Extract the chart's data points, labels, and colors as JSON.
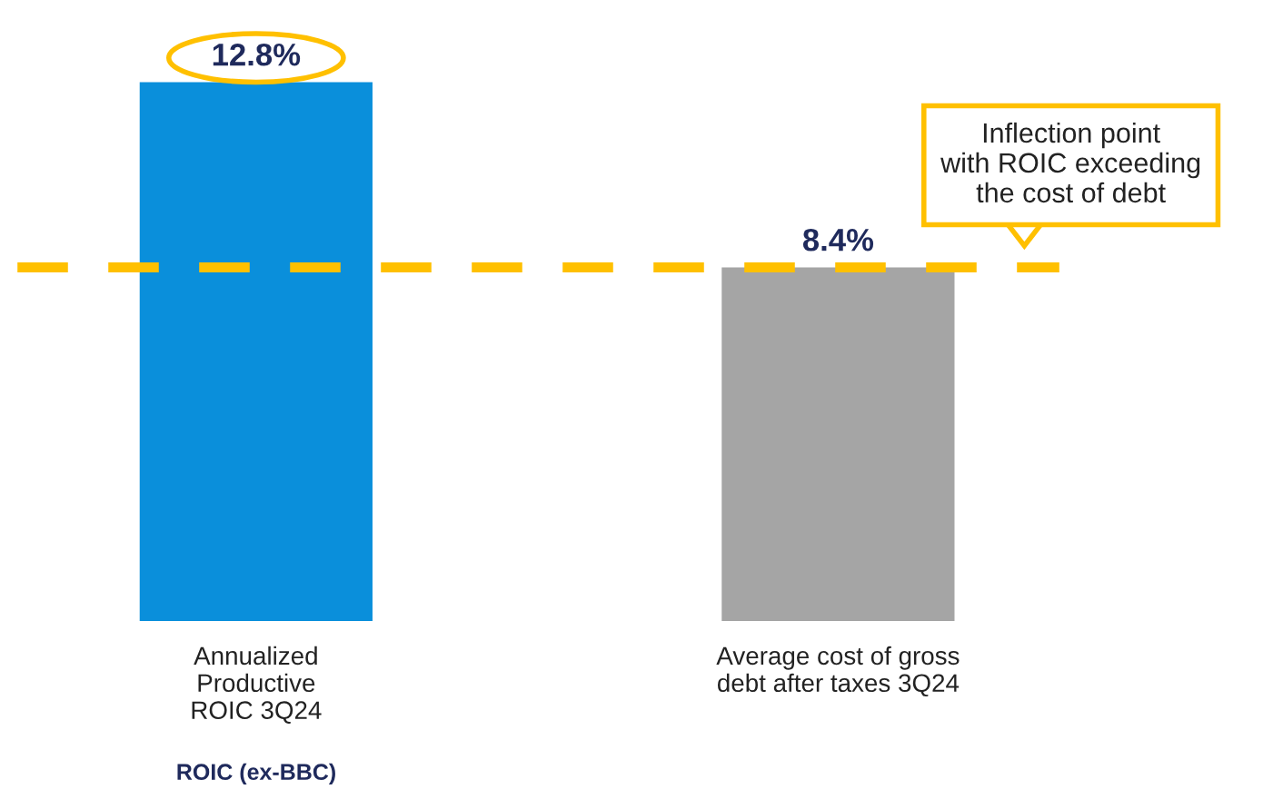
{
  "chart_data": {
    "type": "bar",
    "categories": [
      "Annualized\nProductive\nROIC 3Q24",
      "Average cost of gross\ndebt after taxes 3Q24"
    ],
    "values": [
      12.8,
      8.4
    ],
    "colors": [
      "#0a8fdb",
      "#a5a5a5"
    ],
    "data_labels": false,
    "value_labels": [
      "12.8%",
      "8.4%"
    ],
    "ref_lines": [
      {
        "axis": "y",
        "value": 8.4,
        "label": "Inflection point\nwith ROIC exceeding\nthe cost of debt",
        "color": "#ffc000",
        "line_style": "dashed"
      }
    ],
    "annotations": [
      "ROIC (ex-BBC)"
    ],
    "grid": false,
    "legend": false
  }
}
